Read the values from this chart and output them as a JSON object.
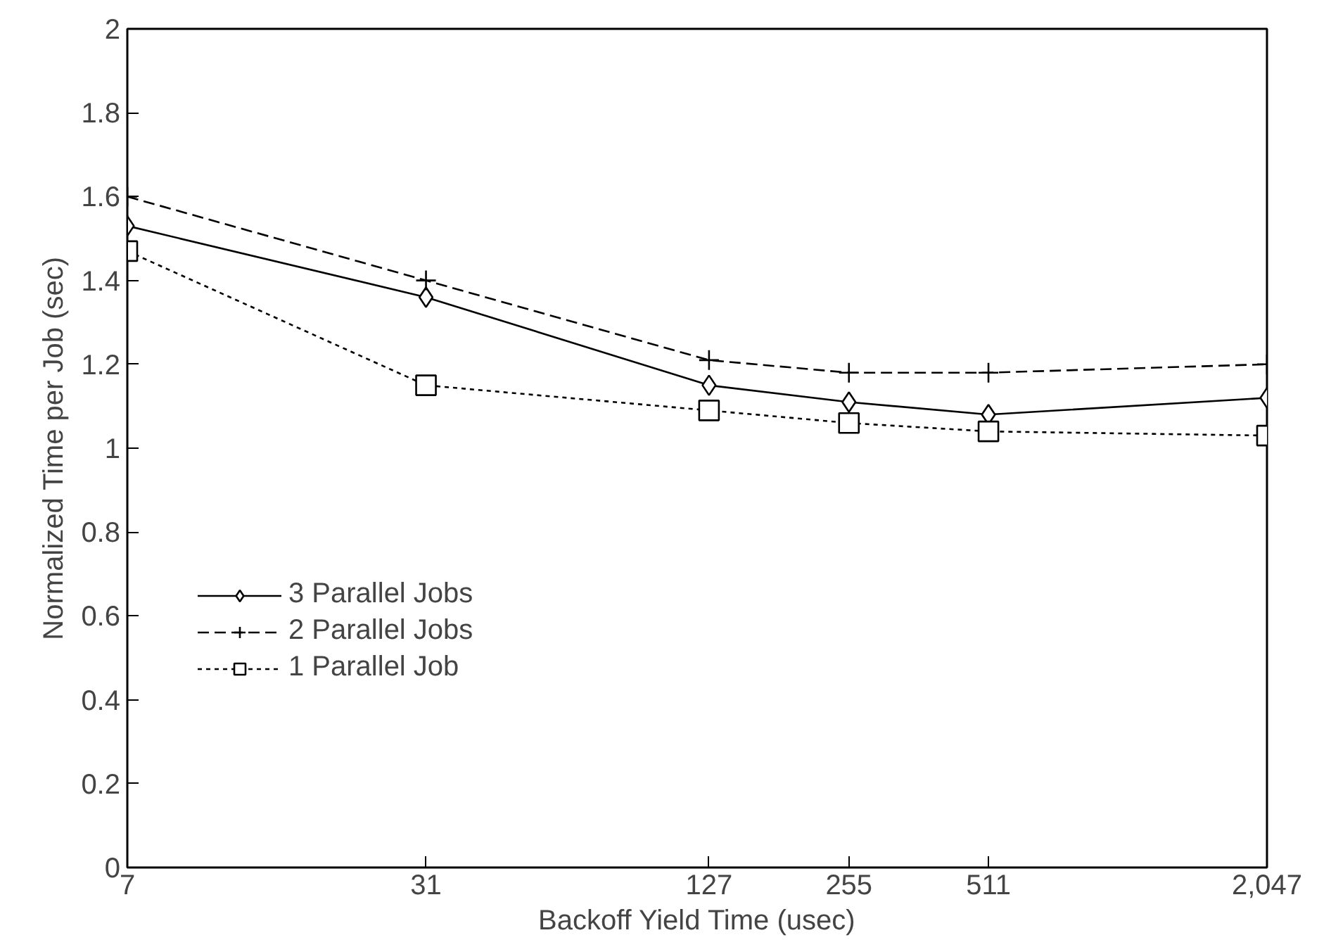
{
  "chart_data": {
    "type": "line",
    "xlabel": "Backoff Yield Time (usec)",
    "ylabel": "Normalized Time per Job (sec)",
    "log": "x",
    "x": [
      7,
      31,
      127,
      255,
      511,
      2047
    ],
    "xlim": [
      7,
      2047
    ],
    "xticks": [
      7,
      31,
      127,
      255,
      511,
      {
        "value": 2047,
        "label": "2,047"
      }
    ],
    "ylim": [
      0,
      2
    ],
    "yticks": [
      0,
      0.2,
      0.4,
      0.6,
      0.8,
      1,
      1.2,
      1.4,
      1.6,
      1.8,
      2
    ],
    "grid": false,
    "legend": "left",
    "series": [
      {
        "name": "3 Parallel Jobs",
        "color": "#000000",
        "marker": "diamond",
        "line_style": "solid",
        "values": [
          1.53,
          1.36,
          1.15,
          1.11,
          1.08,
          1.12
        ]
      },
      {
        "name": "2 Parallel Jobs",
        "color": "#000000",
        "marker": "cross",
        "line_style": "dashed",
        "values": [
          1.6,
          1.4,
          1.21,
          1.18,
          1.18,
          1.2
        ]
      },
      {
        "name": "1 Parallel Job",
        "color": "#000000",
        "marker": "square",
        "line_style": "dotted",
        "values": [
          1.47,
          1.15,
          1.09,
          1.06,
          1.04,
          1.03
        ]
      }
    ]
  }
}
